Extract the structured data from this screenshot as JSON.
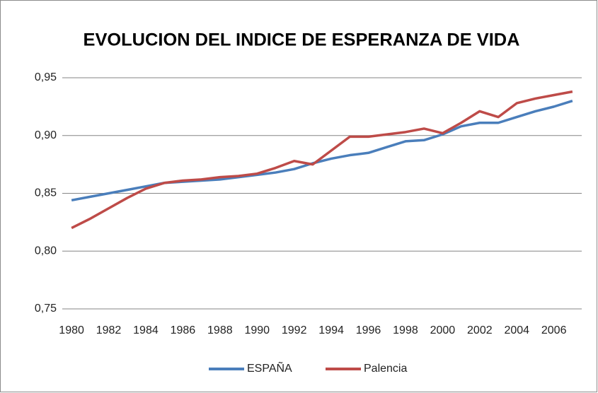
{
  "chart_data": {
    "type": "line",
    "title": "EVOLUCION DEL INDICE DE ESPERANZA DE VIDA",
    "x": [
      1980,
      1981,
      1982,
      1983,
      1984,
      1985,
      1986,
      1987,
      1988,
      1989,
      1990,
      1991,
      1992,
      1993,
      1994,
      1995,
      1996,
      1997,
      1998,
      1999,
      2000,
      2001,
      2002,
      2003,
      2004,
      2005,
      2006,
      2007
    ],
    "series": [
      {
        "name": "ESPAÑA",
        "color": "#4a7ebb",
        "values": [
          0.844,
          0.847,
          0.85,
          0.853,
          0.856,
          0.859,
          0.86,
          0.861,
          0.862,
          0.864,
          0.866,
          0.868,
          0.871,
          0.876,
          0.88,
          0.883,
          0.885,
          0.89,
          0.895,
          0.896,
          0.901,
          0.908,
          0.911,
          0.911,
          0.916,
          0.921,
          0.925,
          0.93
        ]
      },
      {
        "name": "Palencia",
        "color": "#be4b48",
        "values": [
          0.82,
          0.828,
          0.837,
          0.846,
          0.854,
          0.859,
          0.861,
          0.862,
          0.864,
          0.865,
          0.867,
          0.872,
          0.878,
          0.875,
          0.887,
          0.899,
          0.899,
          0.901,
          0.903,
          0.906,
          0.902,
          0.911,
          0.921,
          0.916,
          0.928,
          0.932,
          0.935,
          0.938
        ]
      }
    ],
    "xlim": [
      1979.5,
      2007.5
    ],
    "xticks": [
      1980,
      1982,
      1984,
      1986,
      1988,
      1990,
      1992,
      1994,
      1996,
      1998,
      2000,
      2002,
      2004,
      2006
    ],
    "ylim": [
      0.75,
      0.95
    ],
    "yticks": [
      {
        "value": 0.75,
        "label": "0,75"
      },
      {
        "value": 0.8,
        "label": "0,80"
      },
      {
        "value": 0.85,
        "label": "0,85"
      },
      {
        "value": 0.9,
        "label": "0,90"
      },
      {
        "value": 0.95,
        "label": "0,95"
      }
    ],
    "grid": true,
    "legend": "bottom"
  }
}
